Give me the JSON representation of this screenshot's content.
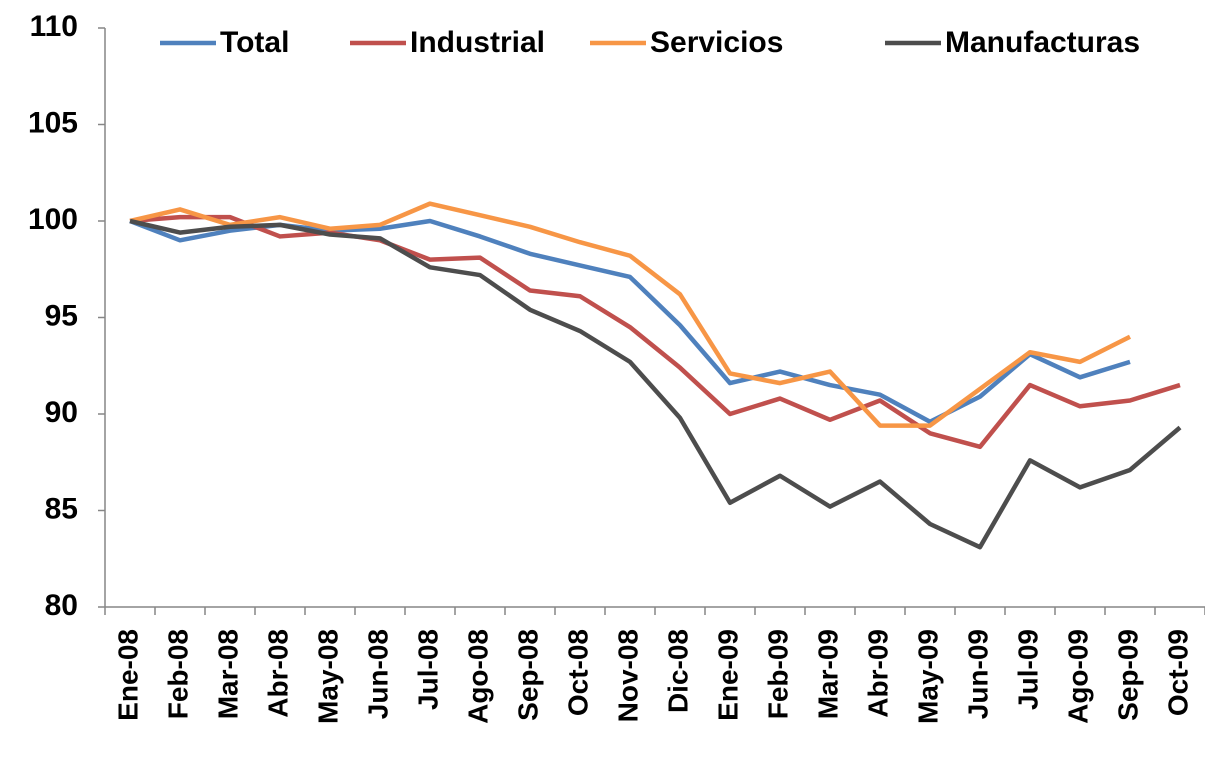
{
  "chart_data": {
    "type": "line",
    "categories": [
      "Ene-08",
      "Feb-08",
      "Mar-08",
      "Abr-08",
      "May-08",
      "Jun-08",
      "Jul-08",
      "Ago-08",
      "Sep-08",
      "Oct-08",
      "Nov-08",
      "Dic-08",
      "Ene-09",
      "Feb-09",
      "Mar-09",
      "Abr-09",
      "May-09",
      "Jun-09",
      "Jul-09",
      "Ago-09",
      "Sep-09",
      "Oct-09"
    ],
    "series": [
      {
        "name": "Total",
        "color": "#4f81bd",
        "values": [
          100,
          99.0,
          99.5,
          99.8,
          99.5,
          99.6,
          100,
          99.2,
          98.3,
          97.7,
          97.1,
          94.6,
          91.6,
          92.2,
          91.5,
          91.0,
          89.6,
          90.9,
          93.1,
          91.9,
          92.7,
          null
        ]
      },
      {
        "name": "Industrial",
        "color": "#c0504d",
        "values": [
          100,
          100.2,
          100.2,
          99.2,
          99.4,
          99.0,
          98.0,
          98.1,
          96.4,
          96.1,
          94.5,
          92.4,
          90.0,
          90.8,
          89.7,
          90.7,
          89.0,
          88.3,
          91.5,
          90.4,
          90.7,
          91.5
        ]
      },
      {
        "name": "Servicios",
        "color": "#f79646",
        "values": [
          100,
          100.6,
          99.8,
          100.2,
          99.6,
          99.8,
          100.9,
          100.3,
          99.7,
          98.9,
          98.2,
          96.2,
          92.1,
          91.6,
          92.2,
          89.4,
          89.4,
          91.3,
          93.2,
          92.7,
          94.0,
          null
        ]
      },
      {
        "name": "Manufacturas",
        "color": "#4d4d4d",
        "values": [
          100,
          99.4,
          99.7,
          99.8,
          99.3,
          99.1,
          97.6,
          97.2,
          95.4,
          94.3,
          92.7,
          89.8,
          85.4,
          86.8,
          85.2,
          86.5,
          84.3,
          83.1,
          87.6,
          86.2,
          87.1,
          89.3
        ]
      }
    ],
    "ylim": [
      80,
      110
    ],
    "yticks": [
      80,
      85,
      90,
      95,
      100,
      105,
      110
    ],
    "legend": "top",
    "grid": false
  }
}
